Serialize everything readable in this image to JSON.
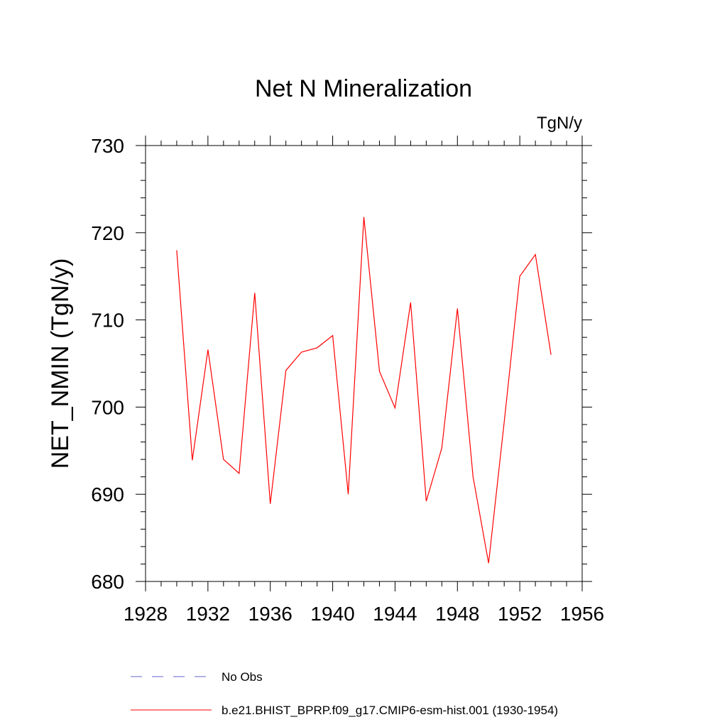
{
  "chart_data": {
    "type": "line",
    "title": "Net N Mineralization",
    "units_label": "TgN/y",
    "xlabel": "",
    "ylabel": "NET_NMIN  (TgN/y)",
    "xlim": [
      1928,
      1956
    ],
    "ylim": [
      680,
      730
    ],
    "xticks": [
      1928,
      1932,
      1936,
      1940,
      1944,
      1948,
      1952,
      1956
    ],
    "yticks": [
      680,
      690,
      700,
      710,
      720,
      730
    ],
    "grid": false,
    "legend_position": "bottom",
    "series": [
      {
        "name": "No Obs",
        "color": "#6666cc",
        "dash": "dashed",
        "x": [],
        "values": []
      },
      {
        "name": "b.e21.BHIST_BPRP.f09_g17.CMIP6-esm-hist.001 (1930-1954)",
        "color": "#ff0000",
        "dash": "solid",
        "x": [
          1930,
          1931,
          1932,
          1933,
          1934,
          1935,
          1936,
          1937,
          1938,
          1939,
          1940,
          1941,
          1942,
          1943,
          1944,
          1945,
          1946,
          1947,
          1948,
          1949,
          1950,
          1951,
          1952,
          1953,
          1954
        ],
        "values": [
          718.0,
          693.9,
          706.6,
          694.0,
          692.4,
          713.1,
          688.9,
          704.2,
          706.3,
          706.8,
          708.2,
          690.0,
          721.8,
          704.1,
          699.9,
          712.0,
          689.2,
          695.3,
          711.3,
          692.0,
          682.1,
          698.3,
          715.0,
          717.5,
          706.0
        ]
      }
    ]
  }
}
